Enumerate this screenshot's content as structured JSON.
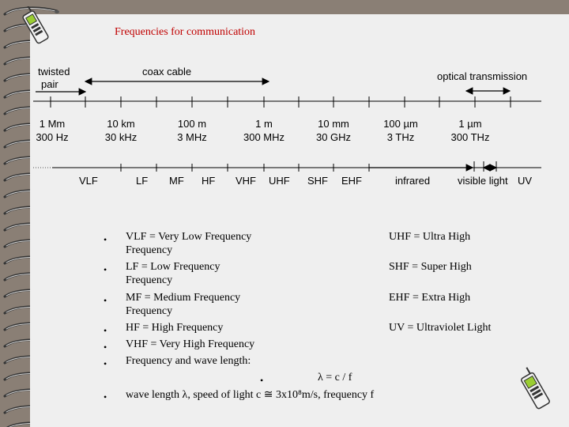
{
  "title": "Frequencies for communication",
  "media": {
    "twisted_pair_line1": "twisted",
    "twisted_pair_line2": "pair",
    "coax": "coax cable",
    "optical": "optical transmission"
  },
  "scale": [
    {
      "wavelength": "1 Mm",
      "frequency": "300 Hz"
    },
    {
      "wavelength": "10 km",
      "frequency": "30 kHz"
    },
    {
      "wavelength": "100 m",
      "frequency": "3 MHz"
    },
    {
      "wavelength": "1 m",
      "frequency": "300 MHz"
    },
    {
      "wavelength": "10 mm",
      "frequency": "30 GHz"
    },
    {
      "wavelength": "100 µm",
      "frequency": "3 THz"
    },
    {
      "wavelength": "1 µm",
      "frequency": "300 THz"
    }
  ],
  "bands": [
    "VLF",
    "LF",
    "MF",
    "HF",
    "VHF",
    "UHF",
    "SHF",
    "EHF",
    "infrared",
    "visible light",
    "UV"
  ],
  "definitions_left": [
    {
      "line1": "VLF = Very Low Frequency",
      "line2": "Frequency"
    },
    {
      "line1": "LF = Low Frequency",
      "line2": "Frequency"
    },
    {
      "line1": "MF = Medium Frequency",
      "line2": "Frequency"
    },
    {
      "line1": "HF = High Frequency",
      "line2": ""
    },
    {
      "line1": "VHF = Very High Frequency",
      "line2": ""
    },
    {
      "line1": "Frequency and wave length:",
      "line2": ""
    }
  ],
  "definitions_right": [
    "UHF = Ultra High",
    "SHF = Super High",
    "EHF = Extra High",
    "UV = Ultraviolet Light"
  ],
  "formula": "λ = c / f",
  "wavelength_note": "wave length λ, speed of light c ≅ 3x10⁸m/s, frequency f",
  "colors": {
    "background": "#8a7f75",
    "slide": "#efefef",
    "title": "#c00000"
  }
}
